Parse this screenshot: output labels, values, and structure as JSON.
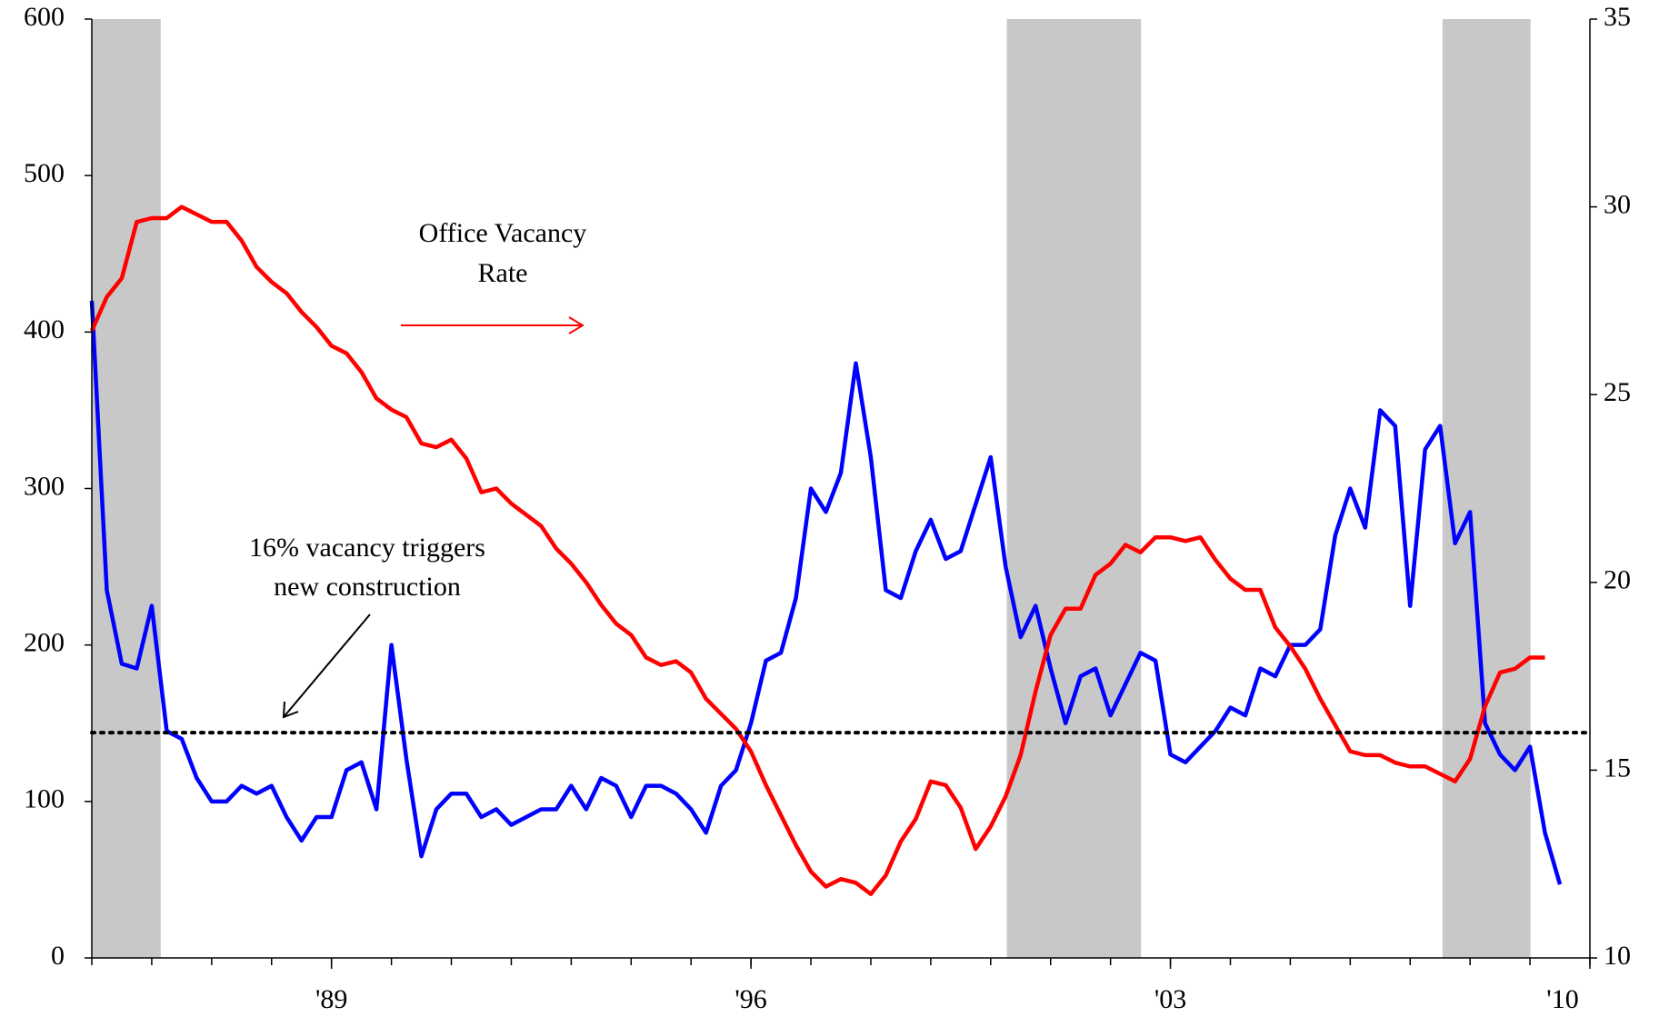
{
  "chart_data": {
    "type": "line",
    "x": [
      1985,
      1985.25,
      1985.5,
      1985.75,
      1986,
      1986.25,
      1986.5,
      1986.75,
      1987,
      1987.25,
      1987.5,
      1987.75,
      1988,
      1988.25,
      1988.5,
      1988.75,
      1989,
      1989.25,
      1989.5,
      1989.75,
      1990,
      1990.25,
      1990.5,
      1990.75,
      1991,
      1991.25,
      1991.5,
      1991.75,
      1992,
      1992.25,
      1992.5,
      1992.75,
      1993,
      1993.25,
      1993.5,
      1993.75,
      1994,
      1994.25,
      1994.5,
      1994.75,
      1995,
      1995.25,
      1995.5,
      1995.75,
      1996,
      1996.25,
      1996.5,
      1996.75,
      1997,
      1997.25,
      1997.5,
      1997.75,
      1998,
      1998.25,
      1998.5,
      1998.75,
      1999,
      1999.25,
      1999.5,
      1999.75,
      2000,
      2000.25,
      2000.5,
      2000.75,
      2001,
      2001.25,
      2001.5,
      2001.75,
      2002,
      2002.25,
      2002.5,
      2002.75,
      2003,
      2003.25,
      2003.5,
      2003.75,
      2004,
      2004.25,
      2004.5,
      2004.75,
      2005,
      2005.25,
      2005.5,
      2005.75,
      2006,
      2006.25,
      2006.5,
      2006.75,
      2007,
      2007.25,
      2007.5,
      2007.75,
      2008,
      2008.25,
      2008.5,
      2008.75,
      2009,
      2009.25,
      2009.5
    ],
    "series": [
      {
        "color": "#0000ff",
        "axis": "y",
        "values": [
          420,
          235,
          188,
          185,
          225,
          145,
          140,
          115,
          100,
          100,
          110,
          105,
          110,
          90,
          75,
          90,
          90,
          120,
          125,
          95,
          200,
          127,
          65,
          95,
          105,
          105,
          90,
          95,
          85,
          90,
          95,
          95,
          110,
          95,
          115,
          110,
          90,
          110,
          110,
          105,
          95,
          80,
          110,
          120,
          150,
          190,
          195,
          230,
          300,
          285,
          310,
          380,
          320,
          235,
          230,
          260,
          280,
          255,
          260,
          290,
          320,
          250,
          205,
          225,
          185,
          150,
          180,
          185,
          155,
          175,
          195,
          190,
          130,
          125,
          135,
          145,
          160,
          155,
          185,
          180,
          200,
          200,
          210,
          270,
          300,
          275,
          350,
          340,
          225,
          325,
          340,
          265,
          285,
          150,
          130,
          120,
          135,
          80,
          47
        ]
      },
      {
        "name": "Office Vacancy Rate",
        "color": "#ff0000",
        "axis": "y2",
        "values": [
          26.7,
          27.6,
          28.1,
          29.6,
          29.7,
          29.7,
          30.0,
          29.8,
          29.6,
          29.6,
          29.1,
          28.4,
          28.0,
          27.7,
          27.2,
          26.8,
          26.3,
          26.1,
          25.6,
          24.9,
          24.6,
          24.4,
          23.7,
          23.6,
          23.8,
          23.3,
          22.4,
          22.5,
          22.1,
          21.8,
          21.5,
          20.9,
          20.5,
          20.0,
          19.4,
          18.9,
          18.6,
          18.0,
          17.8,
          17.9,
          17.6,
          16.9,
          16.5,
          16.1,
          15.5,
          14.6,
          13.8,
          13.0,
          12.3,
          11.9,
          12.1,
          12.0,
          11.7,
          12.2,
          13.1,
          13.7,
          14.7,
          14.6,
          14.0,
          12.9,
          13.5,
          14.3,
          15.4,
          17.1,
          18.6,
          19.3,
          19.3,
          20.2,
          20.5,
          21.0,
          20.8,
          21.2,
          21.2,
          21.1,
          21.2,
          20.6,
          20.1,
          19.8,
          19.8,
          18.8,
          18.3,
          17.7,
          16.9,
          16.2,
          15.5,
          15.4,
          15.4,
          15.2,
          15.1,
          15.1,
          14.9,
          14.7,
          15.3,
          16.7,
          17.6,
          17.7,
          18.0,
          18.0,
          null
        ]
      }
    ],
    "xlim": [
      1985,
      2010
    ],
    "xticks": [
      {
        "value": 1989,
        "label": "'89"
      },
      {
        "value": 1996,
        "label": "'96"
      },
      {
        "value": 2003,
        "label": "'03"
      },
      {
        "value": 2010,
        "label": "'10"
      }
    ],
    "xminor": [
      1985,
      1986,
      1987,
      1988,
      1989,
      1990,
      1991,
      1992,
      1993,
      1994,
      1995,
      1996,
      1997,
      1998,
      1999,
      2000,
      2001,
      2002,
      2003,
      2004,
      2005,
      2006,
      2007,
      2008,
      2009,
      2010
    ],
    "ylim": [
      0,
      600
    ],
    "yticks": [
      0,
      100,
      200,
      300,
      400,
      500,
      600
    ],
    "y2lim": [
      10,
      35
    ],
    "y2ticks": [
      10,
      15,
      20,
      25,
      30,
      35
    ],
    "shaded_periods": [
      [
        1985,
        1986.15
      ],
      [
        2000.27,
        2002.51
      ],
      [
        2007.54,
        2009.01
      ]
    ],
    "shade_color": "#c8c8c8",
    "reference_line": {
      "value": 16,
      "axis": "y2"
    },
    "annotations": [
      {
        "lines": [
          "Office Vacancy",
          "Rate"
        ],
        "color": "#ff0000"
      },
      {
        "lines": [
          "16% vacancy triggers",
          "new construction"
        ],
        "color": "#000000"
      }
    ]
  }
}
